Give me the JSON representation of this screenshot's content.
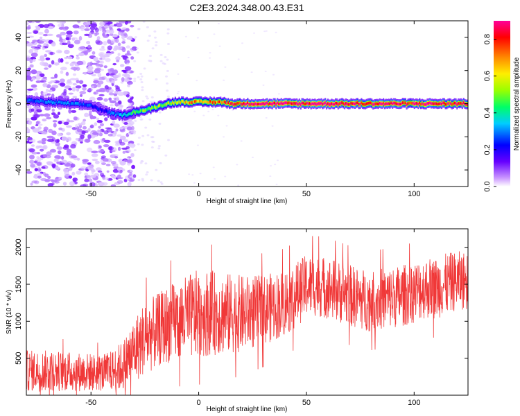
{
  "chart_data": [
    {
      "type": "heatmap",
      "title": "C2E3.2024.348.00.43.E31",
      "xlabel": "Height of straight line (km)",
      "ylabel": "Frequency (Hz)",
      "xlim": [
        -80,
        125
      ],
      "ylim": [
        -50,
        50
      ],
      "xticks": [
        "-50",
        "0",
        "50",
        "100"
      ],
      "yticks": [
        "-40",
        "-20",
        "0",
        "20",
        "40"
      ],
      "colorbar": {
        "label": "Normalized spectral amplitude",
        "range": [
          0.0,
          0.9
        ],
        "ticks": [
          "0.0",
          "0.2",
          "0.4",
          "0.6",
          "0.8"
        ],
        "colors": [
          "#ffffff",
          "#cc99ff",
          "#6600ff",
          "#0000ff",
          "#00ccff",
          "#00ff66",
          "#99ff00",
          "#ffee00",
          "#ff8800",
          "#ff0000",
          "#ff0099"
        ]
      },
      "ridge": {
        "x": [
          -80,
          -70,
          -60,
          -50,
          -45,
          -40,
          -35,
          -30,
          -25,
          -20,
          -15,
          -10,
          -5,
          0,
          5,
          10,
          15,
          20,
          40,
          60,
          80,
          100,
          125
        ],
        "freq": [
          2,
          1,
          0,
          -1,
          -4,
          -6,
          -7,
          -5,
          -4,
          -2,
          0,
          1,
          1,
          1,
          1,
          1,
          0,
          0,
          0,
          0,
          0,
          0,
          0
        ],
        "amplitude": [
          0.25,
          0.3,
          0.3,
          0.25,
          0.2,
          0.3,
          0.35,
          0.45,
          0.5,
          0.5,
          0.55,
          0.6,
          0.65,
          0.7,
          0.7,
          0.75,
          0.8,
          0.85,
          0.9,
          0.9,
          0.88,
          0.85,
          0.8
        ]
      },
      "noise_region": {
        "x": [
          -80,
          -33
        ],
        "freq": [
          -50,
          50
        ]
      }
    },
    {
      "type": "line",
      "xlabel": "Height of straight line (km)",
      "ylabel": "SNR (10 * v/v)",
      "xlim": [
        -80,
        125
      ],
      "ylim": [
        0,
        2250
      ],
      "xticks": [
        "-50",
        "0",
        "50",
        "100"
      ],
      "yticks": [
        "500",
        "1000",
        "1500",
        "2000"
      ],
      "color": "#f03838",
      "envelope": {
        "x": [
          -80,
          -70,
          -60,
          -50,
          -45,
          -40,
          -35,
          -30,
          -25,
          -20,
          -15,
          -10,
          -5,
          0,
          5,
          10,
          15,
          20,
          25,
          30,
          35,
          40,
          45,
          50,
          55,
          60,
          65,
          70,
          75,
          80,
          85,
          90,
          95,
          100,
          105,
          110,
          115,
          120,
          125
        ],
        "mean": [
          330,
          330,
          320,
          310,
          300,
          330,
          400,
          600,
          780,
          850,
          950,
          1000,
          1050,
          1100,
          1120,
          1100,
          1100,
          1100,
          1120,
          1150,
          1200,
          1250,
          1350,
          1480,
          1480,
          1450,
          1400,
          1350,
          1300,
          1280,
          1300,
          1320,
          1350,
          1400,
          1450,
          1450,
          1500,
          1550,
          1550
        ],
        "spread": [
          280,
          280,
          270,
          260,
          250,
          280,
          350,
          450,
          500,
          500,
          520,
          550,
          580,
          600,
          580,
          560,
          550,
          520,
          500,
          480,
          460,
          460,
          450,
          420,
          420,
          420,
          420,
          420,
          420,
          420,
          420,
          420,
          420,
          420,
          420,
          420,
          420,
          400,
          400
        ]
      }
    }
  ]
}
